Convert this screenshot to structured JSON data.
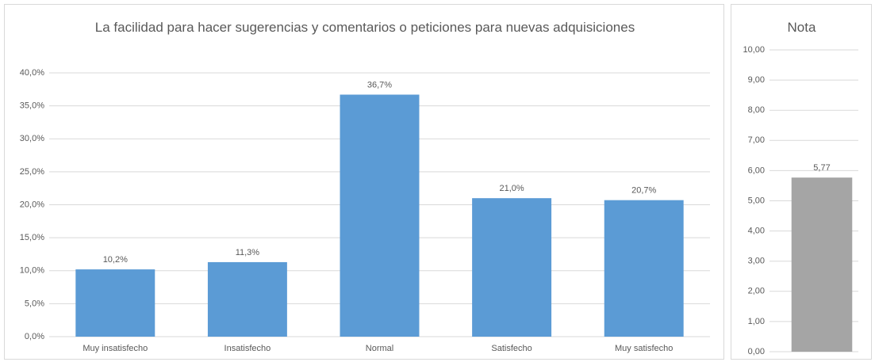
{
  "chart_data": [
    {
      "type": "bar",
      "title": "La facilidad para hacer sugerencias y comentarios o peticiones para nuevas adquisiciones",
      "categories": [
        "Muy insatisfecho",
        "Insatisfecho",
        "Normal",
        "Satisfecho",
        "Muy satisfecho"
      ],
      "values": [
        10.2,
        11.3,
        36.7,
        21.0,
        20.7
      ],
      "value_labels": [
        "10,2%",
        "11,3%",
        "36,7%",
        "21,0%",
        "20,7%"
      ],
      "color": "#5b9bd5",
      "ylim": [
        0,
        40
      ],
      "yticks": [
        {
          "value": 0,
          "label": "0,0%"
        },
        {
          "value": 5,
          "label": "5,0%"
        },
        {
          "value": 10,
          "label": "10,0%"
        },
        {
          "value": 15,
          "label": "15,0%"
        },
        {
          "value": 20,
          "label": "20,0%"
        },
        {
          "value": 25,
          "label": "25,0%"
        },
        {
          "value": 30,
          "label": "30,0%"
        },
        {
          "value": 35,
          "label": "35,0%"
        },
        {
          "value": 40,
          "label": "40,0%"
        }
      ],
      "grid": true
    },
    {
      "type": "bar",
      "title": "Nota",
      "categories": [
        null
      ],
      "values": [
        5.77
      ],
      "value_labels": [
        "5,77"
      ],
      "color": "#a5a5a5",
      "ylim": [
        0,
        10
      ],
      "yticks": [
        {
          "value": 0,
          "label": "0,00"
        },
        {
          "value": 1,
          "label": "1,00"
        },
        {
          "value": 2,
          "label": "2,00"
        },
        {
          "value": 3,
          "label": "3,00"
        },
        {
          "value": 4,
          "label": "4,00"
        },
        {
          "value": 5,
          "label": "5,00"
        },
        {
          "value": 6,
          "label": "6,00"
        },
        {
          "value": 7,
          "label": "7,00"
        },
        {
          "value": 8,
          "label": "8,00"
        },
        {
          "value": 9,
          "label": "9,00"
        },
        {
          "value": 10,
          "label": "10,00"
        }
      ],
      "grid": true
    }
  ]
}
